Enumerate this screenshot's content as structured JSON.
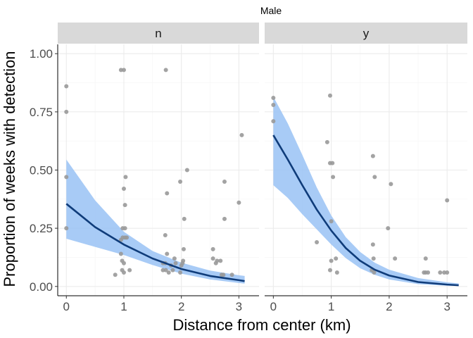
{
  "chart_data": {
    "type": "scatter",
    "title": "Male",
    "xlabel": "Distance from center (km)",
    "ylabel": "Proportion of weeks with detection",
    "xlim": [
      -0.15,
      3.35
    ],
    "ylim": [
      -0.04,
      1.04
    ],
    "x_ticks": [
      0,
      1,
      2,
      3
    ],
    "y_ticks": [
      0.0,
      0.25,
      0.5,
      0.75,
      1.0
    ],
    "x_tick_labels": [
      "0",
      "1",
      "2",
      "3"
    ],
    "y_tick_labels": [
      "0.00",
      "0.25",
      "0.50",
      "0.75",
      "1.00"
    ],
    "grid": true,
    "colors": {
      "points": "#999999",
      "ribbon": "#99c2f5",
      "line": "#0f3c7a",
      "strip": "#d9d9d9",
      "grid_major": "#ebebeb",
      "grid_minor": "#f5f5f5"
    },
    "panels": [
      {
        "strip": "n",
        "points": [
          {
            "x": 0.0,
            "y": 0.86
          },
          {
            "x": 0.0,
            "y": 0.75
          },
          {
            "x": 0.0,
            "y": 0.47
          },
          {
            "x": 0.0,
            "y": 0.25
          },
          {
            "x": 0.85,
            "y": 0.05
          },
          {
            "x": 0.95,
            "y": 0.93
          },
          {
            "x": 1.0,
            "y": 0.93
          },
          {
            "x": 0.95,
            "y": 0.2
          },
          {
            "x": 0.98,
            "y": 0.21
          },
          {
            "x": 1.02,
            "y": 0.21
          },
          {
            "x": 1.05,
            "y": 0.21
          },
          {
            "x": 1.0,
            "y": 0.42
          },
          {
            "x": 1.03,
            "y": 0.47
          },
          {
            "x": 1.02,
            "y": 0.35
          },
          {
            "x": 0.98,
            "y": 0.25
          },
          {
            "x": 1.02,
            "y": 0.25
          },
          {
            "x": 0.95,
            "y": 0.14
          },
          {
            "x": 0.97,
            "y": 0.11
          },
          {
            "x": 1.0,
            "y": 0.1
          },
          {
            "x": 0.97,
            "y": 0.07
          },
          {
            "x": 1.0,
            "y": 0.06
          },
          {
            "x": 1.1,
            "y": 0.07
          },
          {
            "x": 1.73,
            "y": 0.93
          },
          {
            "x": 1.75,
            "y": 0.4
          },
          {
            "x": 1.72,
            "y": 0.22
          },
          {
            "x": 1.75,
            "y": 0.14
          },
          {
            "x": 1.68,
            "y": 0.1
          },
          {
            "x": 1.72,
            "y": 0.1
          },
          {
            "x": 1.68,
            "y": 0.07
          },
          {
            "x": 1.73,
            "y": 0.07
          },
          {
            "x": 1.78,
            "y": 0.06
          },
          {
            "x": 1.85,
            "y": 0.07
          },
          {
            "x": 1.82,
            "y": 0.09
          },
          {
            "x": 1.9,
            "y": 0.1
          },
          {
            "x": 1.88,
            "y": 0.12
          },
          {
            "x": 1.98,
            "y": 0.06
          },
          {
            "x": 2.0,
            "y": 0.09
          },
          {
            "x": 2.02,
            "y": 0.1
          },
          {
            "x": 2.03,
            "y": 0.11
          },
          {
            "x": 1.98,
            "y": 0.45
          },
          {
            "x": 2.1,
            "y": 0.5
          },
          {
            "x": 2.05,
            "y": 0.29
          },
          {
            "x": 2.04,
            "y": 0.16
          },
          {
            "x": 2.55,
            "y": 0.16
          },
          {
            "x": 2.55,
            "y": 0.12
          },
          {
            "x": 2.6,
            "y": 0.1
          },
          {
            "x": 2.62,
            "y": 0.11
          },
          {
            "x": 2.68,
            "y": 0.11
          },
          {
            "x": 2.7,
            "y": 0.05
          },
          {
            "x": 2.73,
            "y": 0.05
          },
          {
            "x": 2.75,
            "y": 0.45
          },
          {
            "x": 2.75,
            "y": 0.29
          },
          {
            "x": 2.88,
            "y": 0.05
          },
          {
            "x": 3.0,
            "y": 0.36
          },
          {
            "x": 3.05,
            "y": 0.65
          }
        ],
        "curve": [
          {
            "x": 0.0,
            "fit": 0.355,
            "lo": 0.205,
            "hi": 0.545
          },
          {
            "x": 0.5,
            "fit": 0.255,
            "lo": 0.17,
            "hi": 0.37
          },
          {
            "x": 1.0,
            "fit": 0.18,
            "lo": 0.135,
            "hi": 0.235
          },
          {
            "x": 1.5,
            "fit": 0.12,
            "lo": 0.092,
            "hi": 0.152
          },
          {
            "x": 2.0,
            "fit": 0.075,
            "lo": 0.055,
            "hi": 0.102
          },
          {
            "x": 2.5,
            "fit": 0.045,
            "lo": 0.03,
            "hi": 0.068
          },
          {
            "x": 3.0,
            "fit": 0.027,
            "lo": 0.015,
            "hi": 0.048
          },
          {
            "x": 3.1,
            "fit": 0.023,
            "lo": 0.012,
            "hi": 0.045
          }
        ]
      },
      {
        "strip": "y",
        "points": [
          {
            "x": 0.0,
            "y": 0.81
          },
          {
            "x": 0.0,
            "y": 0.78
          },
          {
            "x": 0.0,
            "y": 0.71
          },
          {
            "x": 0.75,
            "y": 0.19
          },
          {
            "x": 0.93,
            "y": 0.62
          },
          {
            "x": 0.98,
            "y": 0.53
          },
          {
            "x": 1.02,
            "y": 0.53
          },
          {
            "x": 0.98,
            "y": 0.82
          },
          {
            "x": 1.03,
            "y": 0.47
          },
          {
            "x": 1.0,
            "y": 0.28
          },
          {
            "x": 1.0,
            "y": 0.11
          },
          {
            "x": 0.98,
            "y": 0.07
          },
          {
            "x": 1.08,
            "y": 0.12
          },
          {
            "x": 1.1,
            "y": 0.06
          },
          {
            "x": 1.72,
            "y": 0.56
          },
          {
            "x": 1.75,
            "y": 0.47
          },
          {
            "x": 1.72,
            "y": 0.18
          },
          {
            "x": 1.73,
            "y": 0.12
          },
          {
            "x": 1.7,
            "y": 0.07
          },
          {
            "x": 1.74,
            "y": 0.06
          },
          {
            "x": 1.98,
            "y": 0.25
          },
          {
            "x": 2.03,
            "y": 0.44
          },
          {
            "x": 2.1,
            "y": 0.12
          },
          {
            "x": 2.6,
            "y": 0.06
          },
          {
            "x": 2.63,
            "y": 0.12
          },
          {
            "x": 2.63,
            "y": 0.06
          },
          {
            "x": 2.67,
            "y": 0.06
          },
          {
            "x": 2.88,
            "y": 0.06
          },
          {
            "x": 2.95,
            "y": 0.06
          },
          {
            "x": 3.0,
            "y": 0.06
          },
          {
            "x": 3.0,
            "y": 0.37
          }
        ],
        "curve": [
          {
            "x": 0.0,
            "fit": 0.65,
            "lo": 0.435,
            "hi": 0.815
          },
          {
            "x": 0.25,
            "fit": 0.545,
            "lo": 0.38,
            "hi": 0.7
          },
          {
            "x": 0.5,
            "fit": 0.435,
            "lo": 0.31,
            "hi": 0.565
          },
          {
            "x": 0.75,
            "fit": 0.33,
            "lo": 0.245,
            "hi": 0.425
          },
          {
            "x": 1.0,
            "fit": 0.24,
            "lo": 0.18,
            "hi": 0.305
          },
          {
            "x": 1.25,
            "fit": 0.165,
            "lo": 0.122,
            "hi": 0.212
          },
          {
            "x": 1.5,
            "fit": 0.11,
            "lo": 0.078,
            "hi": 0.148
          },
          {
            "x": 1.75,
            "fit": 0.072,
            "lo": 0.05,
            "hi": 0.102
          },
          {
            "x": 2.0,
            "fit": 0.047,
            "lo": 0.03,
            "hi": 0.072
          },
          {
            "x": 2.5,
            "fit": 0.019,
            "lo": 0.01,
            "hi": 0.036
          },
          {
            "x": 3.0,
            "fit": 0.008,
            "lo": 0.003,
            "hi": 0.018
          },
          {
            "x": 3.2,
            "fit": 0.005,
            "lo": 0.002,
            "hi": 0.013
          }
        ]
      }
    ]
  }
}
